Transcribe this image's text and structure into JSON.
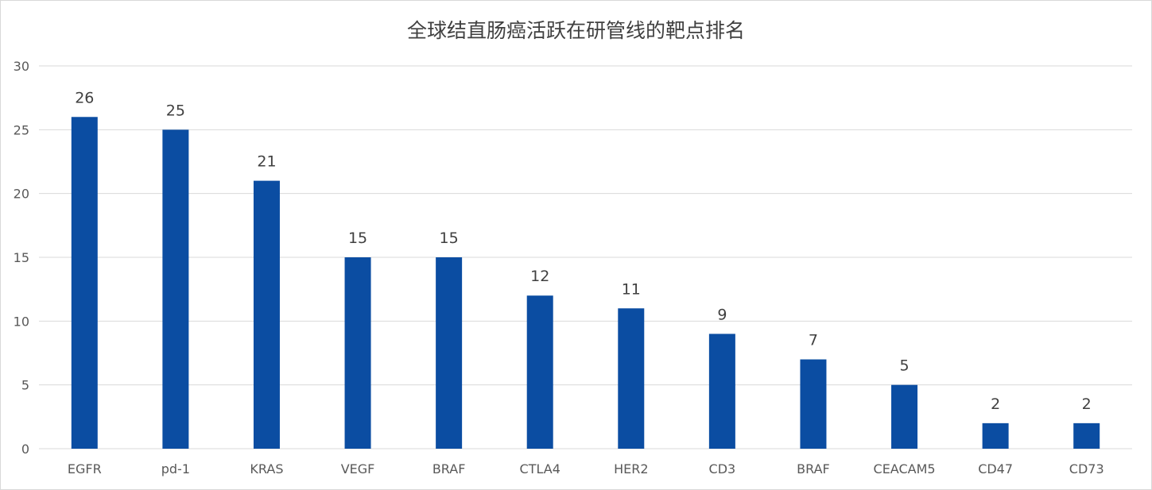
{
  "chart_data": {
    "type": "bar",
    "title": "全球结直肠癌活跃在研管线的靶点排名",
    "categories": [
      "EGFR",
      "pd-1",
      "KRAS",
      "VEGF",
      "BRAF",
      "CTLA4",
      "HER2",
      "CD3",
      "BRAF",
      "CEACAM5",
      "CD47",
      "CD73"
    ],
    "values": [
      26,
      25,
      21,
      15,
      15,
      12,
      11,
      9,
      7,
      5,
      2,
      2
    ],
    "data_labels": [
      "26",
      "25",
      "21",
      "15",
      "15",
      "12",
      "11",
      "9",
      "7",
      "5",
      "2",
      "2"
    ],
    "y_ticks": [
      "0",
      "5",
      "10",
      "15",
      "20",
      "25",
      "30"
    ],
    "xlabel": "",
    "ylabel": "",
    "ylim": [
      0,
      30
    ],
    "grid": true,
    "legend": "none",
    "bar_color": "#0b4da2",
    "grid_color": "#d9d9d9"
  }
}
